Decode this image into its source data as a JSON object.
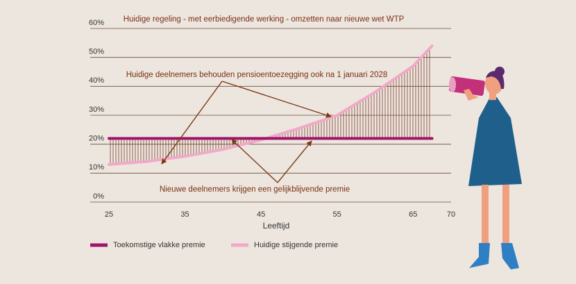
{
  "chart_data": {
    "type": "line",
    "title": "Huidige regeling - met eerbiedigende werking - omzetten naar nieuwe wet WTP",
    "annotations": [
      "Huidige deelnemers behouden pensioentoezegging ook na 1 januari 2028",
      "Nieuwe deelnemers krijgen een gelijkblijvende premie"
    ],
    "xlabel": "Leeftijd",
    "x": [
      25,
      30,
      35,
      40,
      45,
      50,
      55,
      60,
      65,
      67.5
    ],
    "series": [
      {
        "name": "Toekomstige vlakke premie",
        "color": "#a0156b",
        "values": [
          22,
          22,
          22,
          22,
          22,
          22,
          22,
          22,
          22,
          22
        ]
      },
      {
        "name": "Huidige stijgende premie",
        "color": "#f2a9c9",
        "values": [
          13,
          14,
          15.8,
          18.2,
          21.5,
          25.5,
          30,
          38,
          47,
          54
        ]
      }
    ],
    "xlim": [
      25,
      70
    ],
    "xticks": [
      25,
      35,
      45,
      55,
      65,
      70
    ],
    "ylim": [
      0,
      60
    ],
    "yticks": [
      {
        "value": 0,
        "label": "0%"
      },
      {
        "value": 10,
        "label": "10%"
      },
      {
        "value": 20,
        "label": "20%"
      },
      {
        "value": 30,
        "label": "30%"
      },
      {
        "value": 40,
        "label": "40%"
      },
      {
        "value": 50,
        "label": "50%"
      },
      {
        "value": 60,
        "label": "60%"
      }
    ],
    "grid": true
  }
}
